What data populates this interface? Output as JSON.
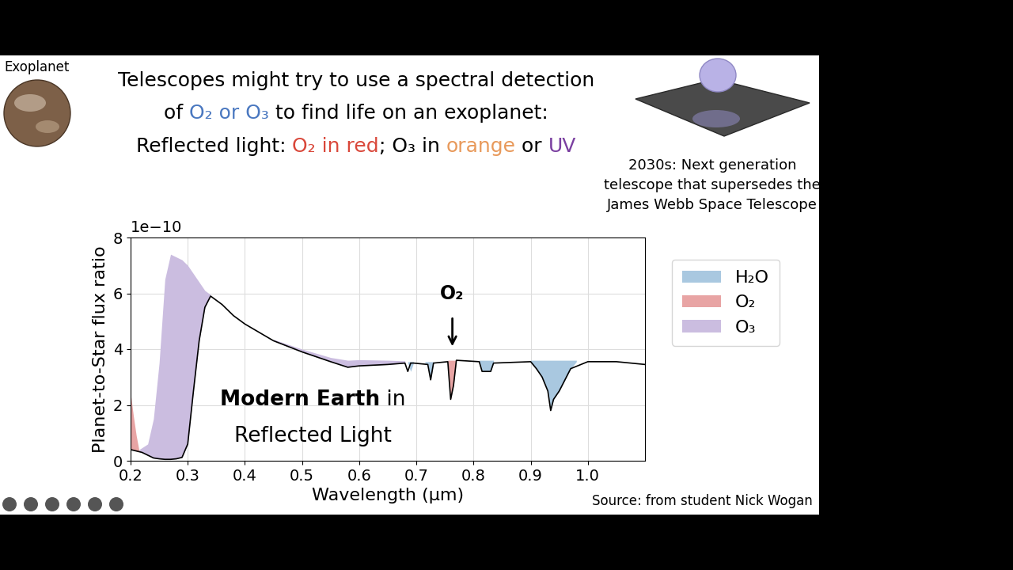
{
  "slide": {
    "corner_label": "Exoplanet",
    "title_lines": [
      [
        {
          "text": "Telescopes might try to use a spectral detection",
          "color": "#000000"
        }
      ],
      [
        {
          "text": "of ",
          "color": "#000000"
        },
        {
          "text": "O₂ or O₃",
          "color": "#4a78c0"
        },
        {
          "text": " to find life on an exoplanet:",
          "color": "#000000"
        }
      ],
      [
        {
          "text": "Reflected light: ",
          "color": "#000000"
        },
        {
          "text": "O₂ in red",
          "color": "#d9473a"
        },
        {
          "text": "; O₃ in ",
          "color": "#000000"
        },
        {
          "text": "orange",
          "color": "#e8995a"
        },
        {
          "text": " or ",
          "color": "#000000"
        },
        {
          "text": "UV",
          "color": "#7a3fa0"
        }
      ]
    ],
    "telescope_caption": [
      "2030s: Next generation",
      "telescope that supersedes the",
      "James Webb Space Telescope"
    ],
    "source": "Source: from student Nick Wogan"
  },
  "chart_data": {
    "type": "line",
    "xlabel": "Wavelength (μm)",
    "ylabel": "Planet-to-Star flux ratio",
    "y_multiplier_label": "1e−10",
    "xlim": [
      0.2,
      1.1
    ],
    "xticks": [
      0.2,
      0.3,
      0.4,
      0.5,
      0.6,
      0.7,
      0.8,
      0.9,
      1.0
    ],
    "ylim": [
      0,
      8
    ],
    "yticks": [
      0,
      2,
      4,
      6,
      8
    ],
    "grid": true,
    "legend": "upper left",
    "color": "#000000",
    "x": [
      0.2,
      0.21,
      0.22,
      0.23,
      0.24,
      0.25,
      0.26,
      0.27,
      0.28,
      0.29,
      0.3,
      0.31,
      0.32,
      0.33,
      0.34,
      0.36,
      0.38,
      0.4,
      0.45,
      0.5,
      0.55,
      0.58,
      0.6,
      0.65,
      0.68,
      0.685,
      0.69,
      0.695,
      0.72,
      0.725,
      0.73,
      0.755,
      0.76,
      0.765,
      0.77,
      0.81,
      0.815,
      0.83,
      0.835,
      0.9,
      0.91,
      0.92,
      0.93,
      0.935,
      0.94,
      0.95,
      0.96,
      0.97,
      1.0,
      1.05,
      1.1
    ],
    "values": [
      0.4,
      0.35,
      0.3,
      0.2,
      0.1,
      0.07,
      0.05,
      0.05,
      0.07,
      0.12,
      0.6,
      2.5,
      4.3,
      5.5,
      5.9,
      5.6,
      5.2,
      4.9,
      4.3,
      3.9,
      3.55,
      3.35,
      3.4,
      3.45,
      3.5,
      3.2,
      3.5,
      3.5,
      3.45,
      2.9,
      3.5,
      3.55,
      2.2,
      2.7,
      3.6,
      3.55,
      3.2,
      3.2,
      3.5,
      3.55,
      3.3,
      3.0,
      2.5,
      1.8,
      2.2,
      2.5,
      2.9,
      3.3,
      3.55,
      3.55,
      3.45
    ],
    "series": [
      {
        "name": "H₂O",
        "color": "#a9c8e0",
        "bands": [
          {
            "x": [
              0.685,
              0.69,
              0.695
            ],
            "upper": [
              3.55,
              3.55,
              3.55
            ],
            "lower": [
              3.5,
              3.2,
              3.5
            ]
          },
          {
            "x": [
              0.715,
              0.72,
              0.725,
              0.73
            ],
            "upper": [
              3.55,
              3.55,
              3.55,
              3.55
            ],
            "lower": [
              3.5,
              3.45,
              2.9,
              3.5
            ]
          },
          {
            "x": [
              0.81,
              0.815,
              0.83,
              0.835
            ],
            "upper": [
              3.6,
              3.6,
              3.6,
              3.6
            ],
            "lower": [
              3.55,
              3.2,
              3.2,
              3.5
            ]
          },
          {
            "x": [
              0.9,
              0.91,
              0.92,
              0.93,
              0.935,
              0.94,
              0.95,
              0.96,
              0.97,
              0.98
            ],
            "upper": [
              3.6,
              3.6,
              3.6,
              3.6,
              3.6,
              3.6,
              3.6,
              3.6,
              3.6,
              3.6
            ],
            "lower": [
              3.55,
              3.3,
              3.0,
              2.5,
              1.8,
              2.2,
              2.5,
              2.9,
              3.3,
              3.55
            ]
          }
        ]
      },
      {
        "name": "O₂",
        "color": "#e8a4a4",
        "bands": [
          {
            "x": [
              0.2,
              0.205,
              0.21,
              0.215
            ],
            "upper": [
              2.4,
              1.6,
              0.9,
              0.35
            ],
            "lower": [
              0.4,
              0.38,
              0.35,
              0.33
            ]
          },
          {
            "x": [
              0.755,
              0.76,
              0.765,
              0.77
            ],
            "upper": [
              3.6,
              3.6,
              3.6,
              3.6
            ],
            "lower": [
              3.55,
              2.2,
              2.7,
              3.6
            ]
          }
        ]
      },
      {
        "name": "O₃",
        "color": "#cbbde0",
        "bands": [
          {
            "x": [
              0.215,
              0.23,
              0.24,
              0.25,
              0.26,
              0.27,
              0.28,
              0.29,
              0.3,
              0.31,
              0.32,
              0.33,
              0.34
            ],
            "upper": [
              0.4,
              0.6,
              1.5,
              3.5,
              6.5,
              7.4,
              7.3,
              7.2,
              7.0,
              6.7,
              6.4,
              6.1,
              5.95
            ],
            "lower": [
              0.33,
              0.2,
              0.1,
              0.07,
              0.05,
              0.05,
              0.07,
              0.12,
              0.6,
              2.5,
              4.3,
              5.5,
              5.9
            ]
          },
          {
            "x": [
              0.45,
              0.5,
              0.55,
              0.58,
              0.6,
              0.65,
              0.68
            ],
            "upper": [
              4.35,
              4.0,
              3.7,
              3.6,
              3.62,
              3.6,
              3.58
            ],
            "lower": [
              4.3,
              3.9,
              3.55,
              3.35,
              3.4,
              3.45,
              3.5
            ]
          }
        ]
      }
    ],
    "annotations": [
      {
        "text": "O₂",
        "x": 0.763,
        "y": 4.1
      }
    ],
    "label_lines": [
      [
        "Modern Earth",
        " in"
      ],
      [
        "Reflected Light"
      ]
    ]
  }
}
